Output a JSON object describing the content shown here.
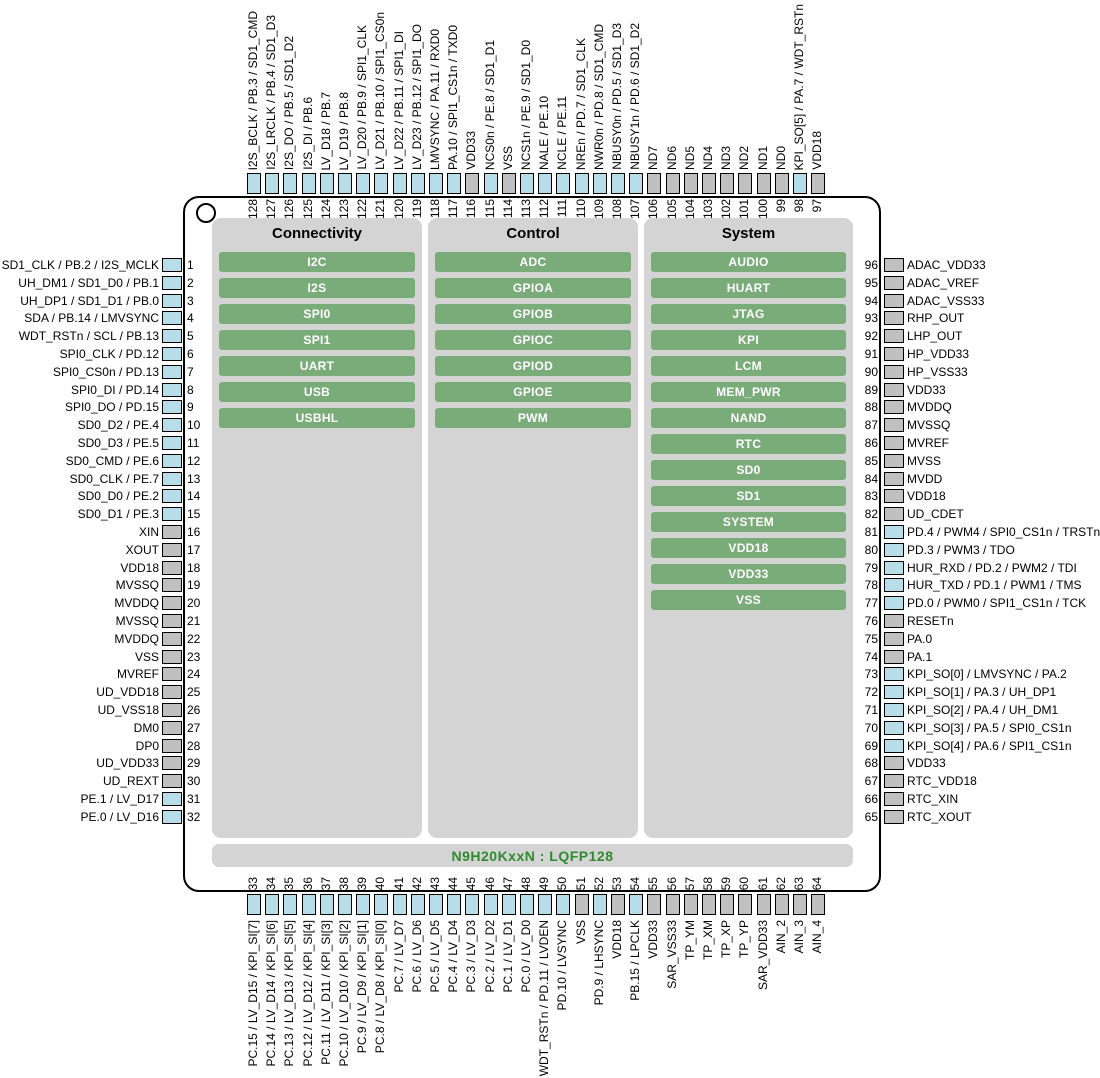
{
  "part_label": "N9H20KxxN : LQFP128",
  "colors": {
    "pad_io": "#b7dde8",
    "pad_power": "#c0c0c0",
    "block_green": "#7aac7a",
    "panel_gray": "#d4d4d4",
    "part_label_green": "#2e8b2e"
  },
  "columns": [
    {
      "title": "Connectivity",
      "blocks": [
        "I2C",
        "I2S",
        "SPI0",
        "SPI1",
        "UART",
        "USB",
        "USBHL"
      ]
    },
    {
      "title": "Control",
      "blocks": [
        "ADC",
        "GPIOA",
        "GPIOB",
        "GPIOC",
        "GPIOD",
        "GPIOE",
        "PWM"
      ]
    },
    {
      "title": "System",
      "blocks": [
        "AUDIO",
        "HUART",
        "JTAG",
        "KPI",
        "LCM",
        "MEM_PWR",
        "NAND",
        "RTC",
        "SD0",
        "SD1",
        "SYSTEM",
        "VDD18",
        "VDD33",
        "VSS"
      ]
    }
  ],
  "pins": {
    "left": [
      {
        "num": 1,
        "label": "SD1_CLK / PB.2 / I2S_MCLK",
        "type": "io"
      },
      {
        "num": 2,
        "label": "UH_DM1 / SD1_D0 / PB.1",
        "type": "io"
      },
      {
        "num": 3,
        "label": "UH_DP1 / SD1_D1 / PB.0",
        "type": "io"
      },
      {
        "num": 4,
        "label": "SDA / PB.14 / LMVSYNC",
        "type": "io"
      },
      {
        "num": 5,
        "label": "WDT_RSTn / SCL / PB.13",
        "type": "io"
      },
      {
        "num": 6,
        "label": "SPI0_CLK / PD.12",
        "type": "io"
      },
      {
        "num": 7,
        "label": "SPI0_CS0n / PD.13",
        "type": "io"
      },
      {
        "num": 8,
        "label": "SPI0_DI / PD.14",
        "type": "io"
      },
      {
        "num": 9,
        "label": "SPI0_DO / PD.15",
        "type": "io"
      },
      {
        "num": 10,
        "label": "SD0_D2 / PE.4",
        "type": "io"
      },
      {
        "num": 11,
        "label": "SD0_D3 / PE.5",
        "type": "io"
      },
      {
        "num": 12,
        "label": "SD0_CMD / PE.6",
        "type": "io"
      },
      {
        "num": 13,
        "label": "SD0_CLK / PE.7",
        "type": "io"
      },
      {
        "num": 14,
        "label": "SD0_D0 / PE.2",
        "type": "io"
      },
      {
        "num": 15,
        "label": "SD0_D1 / PE.3",
        "type": "io"
      },
      {
        "num": 16,
        "label": "XIN",
        "type": "power"
      },
      {
        "num": 17,
        "label": "XOUT",
        "type": "power"
      },
      {
        "num": 18,
        "label": "VDD18",
        "type": "power"
      },
      {
        "num": 19,
        "label": "MVSSQ",
        "type": "power"
      },
      {
        "num": 20,
        "label": "MVDDQ",
        "type": "power"
      },
      {
        "num": 21,
        "label": "MVSSQ",
        "type": "power"
      },
      {
        "num": 22,
        "label": "MVDDQ",
        "type": "power"
      },
      {
        "num": 23,
        "label": "VSS",
        "type": "power"
      },
      {
        "num": 24,
        "label": "MVREF",
        "type": "power"
      },
      {
        "num": 25,
        "label": "UD_VDD18",
        "type": "power"
      },
      {
        "num": 26,
        "label": "UD_VSS18",
        "type": "power"
      },
      {
        "num": 27,
        "label": "DM0",
        "type": "power"
      },
      {
        "num": 28,
        "label": "DP0",
        "type": "power"
      },
      {
        "num": 29,
        "label": "UD_VDD33",
        "type": "power"
      },
      {
        "num": 30,
        "label": "UD_REXT",
        "type": "power"
      },
      {
        "num": 31,
        "label": "PE.1 / LV_D17",
        "type": "io"
      },
      {
        "num": 32,
        "label": "PE.0 / LV_D16",
        "type": "io"
      }
    ],
    "top": [
      {
        "num": 128,
        "label": "I2S_BCLK / PB.3 / SD1_CMD",
        "type": "io"
      },
      {
        "num": 127,
        "label": "I2S_LRCLK / PB.4 / SD1_D3",
        "type": "io"
      },
      {
        "num": 126,
        "label": "I2S_DO / PB.5 / SD1_D2",
        "type": "io"
      },
      {
        "num": 125,
        "label": "I2S_DI / PB.6",
        "type": "io"
      },
      {
        "num": 124,
        "label": "LV_D18 / PB.7",
        "type": "io"
      },
      {
        "num": 123,
        "label": "LV_D19 / PB.8",
        "type": "io"
      },
      {
        "num": 122,
        "label": "LV_D20 / PB.9 / SPI1_CLK",
        "type": "io"
      },
      {
        "num": 121,
        "label": "LV_D21 / PB.10 / SPI1_CS0n",
        "type": "io"
      },
      {
        "num": 120,
        "label": "LV_D22 / PB.11 / SPI1_DI",
        "type": "io"
      },
      {
        "num": 119,
        "label": "LV_D23 / PB.12 / SPI1_DO",
        "type": "io"
      },
      {
        "num": 118,
        "label": "LMVSYNC / PA.11 / RXD0",
        "type": "io"
      },
      {
        "num": 117,
        "label": "PA.10 / SPI1_CS1n / TXD0",
        "type": "io"
      },
      {
        "num": 116,
        "label": "VDD33",
        "type": "power"
      },
      {
        "num": 115,
        "label": "NCS0n / PE.8 / SD1_D1",
        "type": "io"
      },
      {
        "num": 114,
        "label": "VSS",
        "type": "power"
      },
      {
        "num": 113,
        "label": "NCS1n / PE.9 / SD1_D0",
        "type": "io"
      },
      {
        "num": 112,
        "label": "NALE / PE.10",
        "type": "io"
      },
      {
        "num": 111,
        "label": "NCLE / PE.11",
        "type": "io"
      },
      {
        "num": 110,
        "label": "NREn / PD.7 / SD1_CLK",
        "type": "io"
      },
      {
        "num": 109,
        "label": "NWR0n / PD.8 / SD1_CMD",
        "type": "io"
      },
      {
        "num": 108,
        "label": "NBUSY0n / PD.5 / SD1_D3",
        "type": "io"
      },
      {
        "num": 107,
        "label": "NBUSY1n / PD.6 / SD1_D2",
        "type": "io"
      },
      {
        "num": 106,
        "label": "ND7",
        "type": "power"
      },
      {
        "num": 105,
        "label": "ND6",
        "type": "power"
      },
      {
        "num": 104,
        "label": "ND5",
        "type": "power"
      },
      {
        "num": 103,
        "label": "ND4",
        "type": "power"
      },
      {
        "num": 102,
        "label": "ND3",
        "type": "power"
      },
      {
        "num": 101,
        "label": "ND2",
        "type": "power"
      },
      {
        "num": 100,
        "label": "ND1",
        "type": "power"
      },
      {
        "num": 99,
        "label": "ND0",
        "type": "power"
      },
      {
        "num": 98,
        "label": "KPI_SO[5] / PA.7 / WDT_RSTn",
        "type": "io"
      },
      {
        "num": 97,
        "label": "VDD18",
        "type": "power"
      }
    ],
    "right": [
      {
        "num": 96,
        "label": "ADAC_VDD33",
        "type": "power"
      },
      {
        "num": 95,
        "label": "ADAC_VREF",
        "type": "power"
      },
      {
        "num": 94,
        "label": "ADAC_VSS33",
        "type": "power"
      },
      {
        "num": 93,
        "label": "RHP_OUT",
        "type": "power"
      },
      {
        "num": 92,
        "label": "LHP_OUT",
        "type": "power"
      },
      {
        "num": 91,
        "label": "HP_VDD33",
        "type": "power"
      },
      {
        "num": 90,
        "label": "HP_VSS33",
        "type": "power"
      },
      {
        "num": 89,
        "label": "VDD33",
        "type": "power"
      },
      {
        "num": 88,
        "label": "MVDDQ",
        "type": "power"
      },
      {
        "num": 87,
        "label": "MVSSQ",
        "type": "power"
      },
      {
        "num": 86,
        "label": "MVREF",
        "type": "power"
      },
      {
        "num": 85,
        "label": "MVSS",
        "type": "power"
      },
      {
        "num": 84,
        "label": "MVDD",
        "type": "power"
      },
      {
        "num": 83,
        "label": "VDD18",
        "type": "power"
      },
      {
        "num": 82,
        "label": "UD_CDET",
        "type": "power"
      },
      {
        "num": 81,
        "label": "PD.4 / PWM4 / SPI0_CS1n / TRSTn",
        "type": "io"
      },
      {
        "num": 80,
        "label": "PD.3 / PWM3 / TDO",
        "type": "io"
      },
      {
        "num": 79,
        "label": "HUR_RXD / PD.2 / PWM2 / TDI",
        "type": "io"
      },
      {
        "num": 78,
        "label": "HUR_TXD / PD.1 / PWM1 / TMS",
        "type": "io"
      },
      {
        "num": 77,
        "label": "PD.0 / PWM0 / SPI1_CS1n / TCK",
        "type": "io"
      },
      {
        "num": 76,
        "label": "RESETn",
        "type": "power"
      },
      {
        "num": 75,
        "label": "PA.0",
        "type": "power"
      },
      {
        "num": 74,
        "label": "PA.1",
        "type": "power"
      },
      {
        "num": 73,
        "label": "KPI_SO[0] / LMVSYNC / PA.2",
        "type": "io"
      },
      {
        "num": 72,
        "label": "KPI_SO[1] / PA.3 / UH_DP1",
        "type": "io"
      },
      {
        "num": 71,
        "label": "KPI_SO[2] / PA.4 / UH_DM1",
        "type": "io"
      },
      {
        "num": 70,
        "label": "KPI_SO[3] / PA.5 / SPI0_CS1n",
        "type": "io"
      },
      {
        "num": 69,
        "label": "KPI_SO[4] / PA.6 / SPI1_CS1n",
        "type": "io"
      },
      {
        "num": 68,
        "label": "VDD33",
        "type": "power"
      },
      {
        "num": 67,
        "label": "RTC_VDD18",
        "type": "power"
      },
      {
        "num": 66,
        "label": "RTC_XIN",
        "type": "power"
      },
      {
        "num": 65,
        "label": "RTC_XOUT",
        "type": "power"
      }
    ],
    "bottom": [
      {
        "num": 33,
        "label": "PC.15 / LV_D15 / KPI_SI[7]",
        "type": "io"
      },
      {
        "num": 34,
        "label": "PC.14 / LV_D14 / KPI_SI[6]",
        "type": "io"
      },
      {
        "num": 35,
        "label": "PC.13 / LV_D13 / KPI_SI[5]",
        "type": "io"
      },
      {
        "num": 36,
        "label": "PC.12 / LV_D12 / KPI_SI[4]",
        "type": "io"
      },
      {
        "num": 37,
        "label": "PC.11 / LV_D11 / KPI_SI[3]",
        "type": "io"
      },
      {
        "num": 38,
        "label": "PC.10 / LV_D10 / KPI_SI[2]",
        "type": "io"
      },
      {
        "num": 39,
        "label": "PC.9 / LV_D9 / KPI_SI[1]",
        "type": "io"
      },
      {
        "num": 40,
        "label": "PC.8 / LV_D8 / KPI_SI[0]",
        "type": "io"
      },
      {
        "num": 41,
        "label": "PC.7 / LV_D7",
        "type": "io"
      },
      {
        "num": 42,
        "label": "PC.6 / LV_D6",
        "type": "io"
      },
      {
        "num": 43,
        "label": "PC.5 / LV_D5",
        "type": "io"
      },
      {
        "num": 44,
        "label": "PC.4 / LV_D4",
        "type": "io"
      },
      {
        "num": 45,
        "label": "PC.3 / LV_D3",
        "type": "io"
      },
      {
        "num": 46,
        "label": "PC.2 / LV_D2",
        "type": "io"
      },
      {
        "num": 47,
        "label": "PC.1 / LV_D1",
        "type": "io"
      },
      {
        "num": 48,
        "label": "PC.0 / LV_D0",
        "type": "io"
      },
      {
        "num": 49,
        "label": "WDT_RSTn / PD.11 / LVDEN",
        "type": "io"
      },
      {
        "num": 50,
        "label": "PD.10 / LVSYNC",
        "type": "io"
      },
      {
        "num": 51,
        "label": "VSS",
        "type": "power"
      },
      {
        "num": 52,
        "label": "PD.9 / LHSYNC",
        "type": "io"
      },
      {
        "num": 53,
        "label": "VDD18",
        "type": "power"
      },
      {
        "num": 54,
        "label": "PB.15 / LPCLK",
        "type": "io"
      },
      {
        "num": 55,
        "label": "VDD33",
        "type": "power"
      },
      {
        "num": 56,
        "label": "SAR_VSS33",
        "type": "power"
      },
      {
        "num": 57,
        "label": "TP_YM",
        "type": "power"
      },
      {
        "num": 58,
        "label": "TP_XM",
        "type": "power"
      },
      {
        "num": 59,
        "label": "TP_XP",
        "type": "power"
      },
      {
        "num": 60,
        "label": "TP_YP",
        "type": "power"
      },
      {
        "num": 61,
        "label": "SAR_VDD33",
        "type": "power"
      },
      {
        "num": 62,
        "label": "AIN_2",
        "type": "power"
      },
      {
        "num": 63,
        "label": "AIN_3",
        "type": "power"
      },
      {
        "num": 64,
        "label": "AIN_4",
        "type": "power"
      }
    ]
  }
}
